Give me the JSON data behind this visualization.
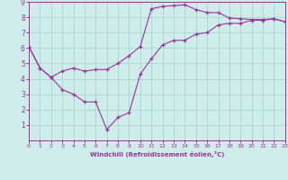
{
  "xlabel": "Windchill (Refroidissement éolien,°C)",
  "xlim": [
    0,
    23
  ],
  "ylim": [
    0,
    9
  ],
  "xticks": [
    0,
    1,
    2,
    3,
    4,
    5,
    6,
    7,
    8,
    9,
    10,
    11,
    12,
    13,
    14,
    15,
    16,
    17,
    18,
    19,
    20,
    21,
    22,
    23
  ],
  "yticks": [
    1,
    2,
    3,
    4,
    5,
    6,
    7,
    8,
    9
  ],
  "bg_color": "#cdecea",
  "grid_color": "#a8d4d2",
  "line_color": "#993399",
  "curve1_x": [
    0,
    1,
    2,
    3,
    4,
    5,
    6,
    7,
    8,
    9,
    10,
    11,
    12,
    13,
    14,
    15,
    16,
    17,
    18,
    19,
    20,
    21,
    22,
    23
  ],
  "curve1_y": [
    6.1,
    4.7,
    4.1,
    3.3,
    3.0,
    2.5,
    2.5,
    0.7,
    1.5,
    1.8,
    4.3,
    5.3,
    6.2,
    6.5,
    6.5,
    6.9,
    7.0,
    7.5,
    7.6,
    7.6,
    7.8,
    7.8,
    7.9,
    7.7
  ],
  "curve2_x": [
    0,
    1,
    2,
    3,
    4,
    5,
    6,
    7,
    8,
    9,
    10,
    11,
    12,
    13,
    14,
    15,
    16,
    17,
    18,
    19,
    20,
    21,
    22,
    23
  ],
  "curve2_y": [
    6.1,
    4.7,
    4.1,
    4.5,
    4.7,
    4.5,
    4.6,
    4.6,
    5.0,
    5.5,
    6.1,
    8.55,
    8.7,
    8.75,
    8.8,
    8.5,
    8.3,
    8.3,
    7.95,
    7.9,
    7.85,
    7.85,
    7.9,
    7.7
  ],
  "marker": "+",
  "markersize": 3.5,
  "linewidth": 0.8,
  "xlabel_fontsize": 5.0,
  "tick_fontsize_x": 4.5,
  "tick_fontsize_y": 5.5
}
